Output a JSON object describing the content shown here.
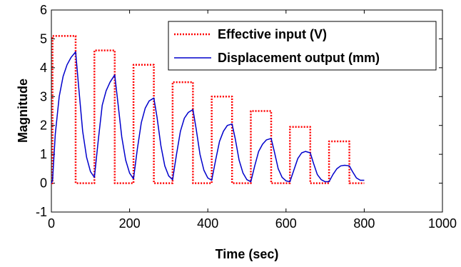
{
  "chart_data": {
    "type": "line",
    "title": "",
    "xlabel": "Time (sec)",
    "ylabel": "Magnitude",
    "xlim": [
      0,
      1000
    ],
    "ylim": [
      -1,
      6
    ],
    "xticks": [
      0,
      200,
      400,
      600,
      800,
      1000
    ],
    "xtick_labels": [
      "0",
      "200",
      "400",
      "600",
      "800",
      "1000"
    ],
    "yticks": [
      -1,
      0,
      1,
      2,
      3,
      4,
      5,
      6
    ],
    "ytick_labels": [
      "-1",
      "0",
      "1",
      "2",
      "3",
      "4",
      "5",
      "6"
    ],
    "grid": false,
    "legend_position": "top-right",
    "series": [
      {
        "name": "Effective input (V)",
        "color": "#ff0000",
        "style": "dotted",
        "x": [
          0,
          3,
          3,
          62,
          62,
          110,
          110,
          162,
          162,
          210,
          210,
          262,
          262,
          310,
          310,
          362,
          362,
          410,
          410,
          462,
          462,
          510,
          510,
          562,
          562,
          610,
          610,
          662,
          662,
          710,
          710,
          762,
          762,
          800
        ],
        "y": [
          0,
          0,
          5.1,
          5.1,
          0,
          0,
          4.6,
          4.6,
          0,
          0,
          4.1,
          4.1,
          0,
          0,
          3.5,
          3.5,
          0,
          0,
          3.0,
          3.0,
          0,
          0,
          2.5,
          2.5,
          0,
          0,
          1.95,
          1.95,
          0,
          0,
          1.45,
          1.45,
          0,
          0
        ]
      },
      {
        "name": "Displacement output (mm)",
        "color": "#0000cc",
        "style": "solid",
        "x": [
          0,
          3,
          10,
          20,
          30,
          40,
          50,
          62,
          70,
          80,
          90,
          100,
          110,
          120,
          130,
          140,
          150,
          162,
          170,
          180,
          190,
          200,
          210,
          220,
          230,
          240,
          250,
          262,
          270,
          280,
          290,
          300,
          310,
          320,
          330,
          340,
          350,
          362,
          370,
          380,
          390,
          400,
          410,
          420,
          430,
          440,
          450,
          462,
          470,
          480,
          490,
          500,
          510,
          520,
          530,
          540,
          550,
          562,
          570,
          580,
          590,
          600,
          610,
          620,
          630,
          640,
          650,
          662,
          670,
          680,
          690,
          700,
          710,
          720,
          730,
          740,
          750,
          762,
          770,
          780,
          790,
          800
        ],
        "y": [
          0,
          0.1,
          1.7,
          3.0,
          3.7,
          4.1,
          4.35,
          4.55,
          3.3,
          1.8,
          0.9,
          0.4,
          0.2,
          1.5,
          2.7,
          3.2,
          3.5,
          3.75,
          2.8,
          1.6,
          0.8,
          0.35,
          0.15,
          1.2,
          2.1,
          2.6,
          2.85,
          2.95,
          2.3,
          1.3,
          0.6,
          0.25,
          0.12,
          1.0,
          1.8,
          2.25,
          2.45,
          2.55,
          1.9,
          1.0,
          0.45,
          0.18,
          0.1,
          0.8,
          1.45,
          1.8,
          2.0,
          2.05,
          1.55,
          0.8,
          0.35,
          0.12,
          0.05,
          0.6,
          1.1,
          1.35,
          1.5,
          1.55,
          1.1,
          0.5,
          0.2,
          0.08,
          0.05,
          0.45,
          0.85,
          1.05,
          1.1,
          1.05,
          0.7,
          0.3,
          0.12,
          0.05,
          0.05,
          0.3,
          0.5,
          0.6,
          0.62,
          0.6,
          0.4,
          0.18,
          0.1,
          0.1
        ]
      }
    ]
  }
}
